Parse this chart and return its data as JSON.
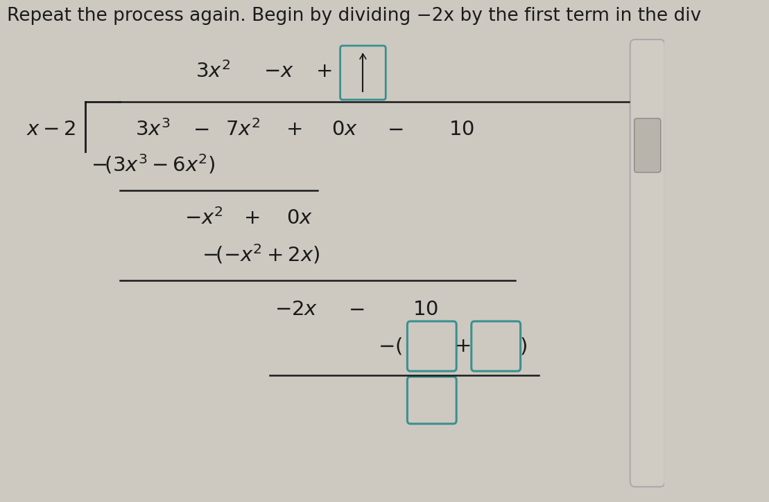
{
  "bg_color": "#cdc9c0",
  "text_color": "#1a1a1a",
  "teal_color": "#3a9090",
  "title_text": "Repeat the process again. Begin by dividing −2x by the first term in the div",
  "title_fontsize": 19,
  "math_fontsize": 21,
  "scrollbar_color": "#b8b4ac",
  "scrollbar_edge": "#aaa8a0"
}
